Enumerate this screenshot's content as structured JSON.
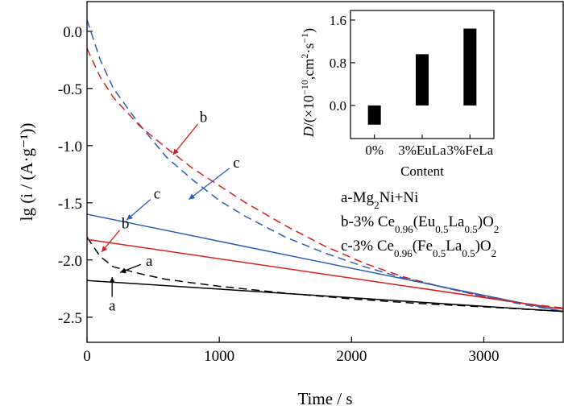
{
  "chart_data": [
    {
      "type": "line",
      "xlabel": "Time / s",
      "ylabel": "lg (i / (A·g⁻¹))",
      "xlim": [
        0,
        3600
      ],
      "ylim": [
        -2.72,
        0.26
      ],
      "xticks": [
        0,
        1000,
        2000,
        3000
      ],
      "xtick_labels": [
        "0",
        "1000",
        "2000",
        "3000"
      ],
      "yticks": [
        0.0,
        -0.5,
        -1.0,
        -1.5,
        -2.0,
        -2.5
      ],
      "ytick_labels": [
        "0.0",
        "-0.5",
        "-1.0",
        "-1.5",
        "-2.0",
        "-2.5"
      ],
      "grid": false,
      "legend": [
        {
          "key": "a",
          "parts": [
            {
              "t": "a-Mg"
            },
            {
              "t": "2",
              "sub": true
            },
            {
              "t": "Ni+Ni"
            }
          ]
        },
        {
          "key": "b",
          "parts": [
            {
              "t": "b-3% Ce"
            },
            {
              "t": "0.96",
              "sub": true
            },
            {
              "t": "(Eu"
            },
            {
              "t": "0.5",
              "sub": true
            },
            {
              "t": "La"
            },
            {
              "t": "0.5",
              "sub": true
            },
            {
              "t": ")O"
            },
            {
              "t": "2",
              "sub": true
            }
          ]
        },
        {
          "key": "c",
          "parts": [
            {
              "t": "c-3% Ce"
            },
            {
              "t": "0.96",
              "sub": true
            },
            {
              "t": "(Fe"
            },
            {
              "t": "0.5",
              "sub": true
            },
            {
              "t": "La"
            },
            {
              "t": "0.5",
              "sub": true
            },
            {
              "t": ")O"
            },
            {
              "t": "2",
              "sub": true
            }
          ]
        }
      ],
      "series": [
        {
          "key": "c",
          "style": "dashed",
          "color": "#2b5fb4",
          "x": [
            0,
            100,
            200,
            400,
            600,
            800,
            1000,
            1200,
            1500,
            1800,
            2100,
            2400,
            2700,
            3000,
            3300,
            3600
          ],
          "y": [
            0.1,
            -0.25,
            -0.5,
            -0.82,
            -1.1,
            -1.3,
            -1.48,
            -1.62,
            -1.8,
            -1.94,
            -2.06,
            -2.16,
            -2.24,
            -2.32,
            -2.39,
            -2.45
          ]
        },
        {
          "key": "b",
          "style": "dashed",
          "color": "#d42020",
          "x": [
            0,
            100,
            200,
            400,
            600,
            800,
            1000,
            1200,
            1500,
            1800,
            2100,
            2400,
            2700,
            3000,
            3300,
            3600
          ],
          "y": [
            -0.15,
            -0.4,
            -0.58,
            -0.83,
            -1.02,
            -1.2,
            -1.35,
            -1.5,
            -1.7,
            -1.88,
            -2.03,
            -2.15,
            -2.24,
            -2.32,
            -2.38,
            -2.42
          ]
        },
        {
          "key": "a",
          "style": "dashed",
          "color": "#000000",
          "x": [
            0,
            100,
            200,
            400,
            600,
            800,
            1000,
            1500,
            2000,
            2500,
            3000,
            3600
          ],
          "y": [
            -1.8,
            -1.97,
            -2.06,
            -2.12,
            -2.17,
            -2.2,
            -2.23,
            -2.29,
            -2.34,
            -2.38,
            -2.41,
            -2.45
          ]
        },
        {
          "key": "c",
          "style": "solid",
          "color": "#2b5fb4",
          "x": [
            0,
            3600
          ],
          "y": [
            -1.6,
            -2.45
          ]
        },
        {
          "key": "b",
          "style": "solid",
          "color": "#d42020",
          "x": [
            0,
            3600
          ],
          "y": [
            -1.82,
            -2.43
          ]
        },
        {
          "key": "a",
          "style": "solid",
          "color": "#000000",
          "x": [
            0,
            3600
          ],
          "y": [
            -2.18,
            -2.45
          ]
        }
      ],
      "annotations": [
        {
          "text": "b",
          "color": "#d42020",
          "tip": [
            650,
            -1.08
          ],
          "label": [
            880,
            -0.75
          ]
        },
        {
          "text": "c",
          "color": "#2b5fb4",
          "tip": [
            770,
            -1.47
          ],
          "label": [
            1130,
            -1.15
          ]
        },
        {
          "text": "c",
          "color": "#2b5fb4",
          "tip": [
            300,
            -1.65
          ],
          "label": [
            530,
            -1.42
          ]
        },
        {
          "text": "b",
          "color": "#d42020",
          "tip": [
            110,
            -1.93
          ],
          "label": [
            290,
            -1.68
          ]
        },
        {
          "text": "a",
          "color": "#000000",
          "tip": [
            250,
            -2.11
          ],
          "label": [
            470,
            -2.01
          ]
        },
        {
          "text": "a",
          "color": "#000000",
          "tip": [
            190,
            -2.15
          ],
          "label": [
            190,
            -2.4
          ]
        }
      ]
    },
    {
      "type": "bar",
      "categories": [
        "0%",
        "3%EuLa",
        "3%FeLa"
      ],
      "values": [
        -0.36,
        0.96,
        1.44
      ],
      "xlabel": "Content",
      "ylabel_parts": [
        {
          "t": "D",
          "italic": true
        },
        {
          "t": "/(×10"
        },
        {
          "t": "−10",
          "sup": true
        },
        {
          "t": ",cm"
        },
        {
          "t": "2",
          "sup": true
        },
        {
          "t": "·s"
        },
        {
          "t": "−1",
          "sup": true
        },
        {
          "t": ")"
        }
      ],
      "ylim": [
        -0.62,
        1.78
      ],
      "yticks": [
        0.0,
        0.8,
        1.6
      ],
      "ytick_labels": [
        "0.0",
        "0.8",
        "1.6"
      ],
      "bar_color": "#000000"
    }
  ]
}
